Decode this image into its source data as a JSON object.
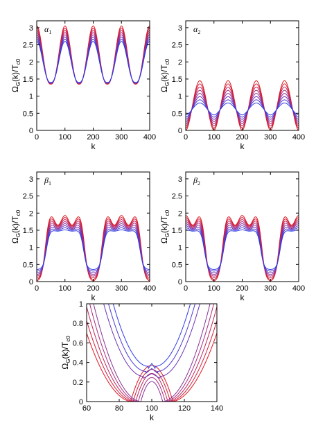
{
  "chart_data": [
    {
      "type": "line",
      "panel_label": "α",
      "panel_sub": "1",
      "xlabel": "k",
      "ylabel_main": "Ω",
      "ylabel_sub": "G",
      "ylabel_mid": "(k)/T",
      "ylabel_sub2": "c0",
      "xlim": [
        0,
        400
      ],
      "ylim": [
        0,
        3.2
      ],
      "xticks": [
        0,
        100,
        200,
        300,
        400
      ],
      "yticks": [
        0,
        0.5,
        1,
        1.5,
        2,
        2.5,
        3
      ],
      "ytick_labels": [
        "0",
        "0.5",
        "1",
        "1.5",
        "2",
        "2.5",
        "3"
      ],
      "model": {
        "form": "osc",
        "base": 2.2,
        "amp": [
          0.85,
          0.4
        ],
        "period": 100,
        "phase": 0,
        "sharp": 1.0,
        "min_lo": 1.35,
        "min_hi": 1.4
      },
      "colors": [
        "#e0151c",
        "#d11c3c",
        "#c0235a",
        "#a72b7a",
        "#8b2f98",
        "#6a33b6",
        "#4a37cf",
        "#2b3ae6"
      ]
    },
    {
      "type": "line",
      "panel_label": "α",
      "panel_sub": "2",
      "xlabel": "k",
      "ylabel_main": "Ω",
      "ylabel_sub": "G",
      "ylabel_mid": "(k)/T",
      "ylabel_sub2": "c0",
      "xlim": [
        0,
        400
      ],
      "ylim": [
        0,
        3.2
      ],
      "xticks": [
        0,
        100,
        200,
        300,
        400
      ],
      "yticks": [
        0,
        0.5,
        1,
        1.5,
        2,
        2.5,
        3
      ],
      "ytick_labels": [
        "0",
        "0.5",
        "1",
        "1.5",
        "2",
        "2.5",
        "3"
      ],
      "model": {
        "form": "bumps",
        "period": 100,
        "phase": 50,
        "top_range": [
          1.45,
          0.8
        ],
        "bottom_range": [
          0.0,
          0.45
        ]
      },
      "colors": [
        "#e0151c",
        "#d11c3c",
        "#c0235a",
        "#a72b7a",
        "#8b2f98",
        "#6a33b6",
        "#4a37cf",
        "#2b3ae6"
      ]
    },
    {
      "type": "line",
      "panel_label": "β",
      "panel_sub": "1",
      "xlabel": "k",
      "ylabel_main": "Ω",
      "ylabel_sub": "G",
      "ylabel_mid": "(k)/T",
      "ylabel_sub2": "c0",
      "xlim": [
        0,
        400
      ],
      "ylim": [
        0,
        3.2
      ],
      "xticks": [
        0,
        100,
        200,
        300,
        400
      ],
      "yticks": [
        0,
        0.5,
        1,
        1.5,
        2,
        2.5,
        3
      ],
      "ytick_labels": [
        "0",
        "0.5",
        "1",
        "1.5",
        "2",
        "2.5",
        "3"
      ],
      "model": {
        "form": "plateau",
        "period": 200,
        "center": 200,
        "top_range": [
          1.85,
          1.5
        ],
        "dip_range": [
          0.0,
          0.35
        ]
      },
      "colors": [
        "#e0151c",
        "#d11c3c",
        "#c0235a",
        "#a72b7a",
        "#8b2f98",
        "#6a33b6",
        "#4a37cf",
        "#2b3ae6"
      ]
    },
    {
      "type": "line",
      "panel_label": "β",
      "panel_sub": "2",
      "xlabel": "k",
      "ylabel_main": "Ω",
      "ylabel_sub": "G",
      "ylabel_mid": "(k)/T",
      "ylabel_sub2": "c0",
      "xlim": [
        0,
        400
      ],
      "ylim": [
        0,
        3.2
      ],
      "xticks": [
        0,
        100,
        200,
        300,
        400
      ],
      "yticks": [
        0,
        0.5,
        1,
        1.5,
        2,
        2.5,
        3
      ],
      "ytick_labels": [
        "0",
        "0.5",
        "1",
        "1.5",
        "2",
        "2.5",
        "3"
      ],
      "model": {
        "form": "plateau",
        "period": 200,
        "center": 100,
        "top_range": [
          1.85,
          1.5
        ],
        "dip_range": [
          0.0,
          0.35
        ]
      },
      "colors": [
        "#e0151c",
        "#d11c3c",
        "#c0235a",
        "#a72b7a",
        "#8b2f98",
        "#6a33b6",
        "#4a37cf",
        "#2b3ae6"
      ]
    },
    {
      "type": "line",
      "panel_label": "",
      "panel_sub": "",
      "xlabel": "k",
      "ylabel_main": "Ω",
      "ylabel_sub": "G",
      "ylabel_mid": "(k)/T",
      "ylabel_sub2": "c0",
      "xlim": [
        60,
        140
      ],
      "ylim": [
        0,
        1
      ],
      "xticks": [
        60,
        80,
        100,
        120,
        140
      ],
      "yticks": [
        0,
        0.2,
        0.4,
        0.6,
        0.8,
        1
      ],
      "ytick_labels": [
        "0",
        "0.2",
        "0.4",
        "0.6",
        "0.8",
        "1"
      ],
      "model": {
        "form": "zoom",
        "center": 100,
        "dip_range": [
          0.0,
          0.36
        ],
        "hump_range": [
          0.37,
          0.08
        ]
      },
      "colors": [
        "#e0151c",
        "#d11c3c",
        "#c0235a",
        "#a72b7a",
        "#8b2f98",
        "#6a33b6",
        "#4a37cf",
        "#2b3ae6"
      ]
    }
  ]
}
